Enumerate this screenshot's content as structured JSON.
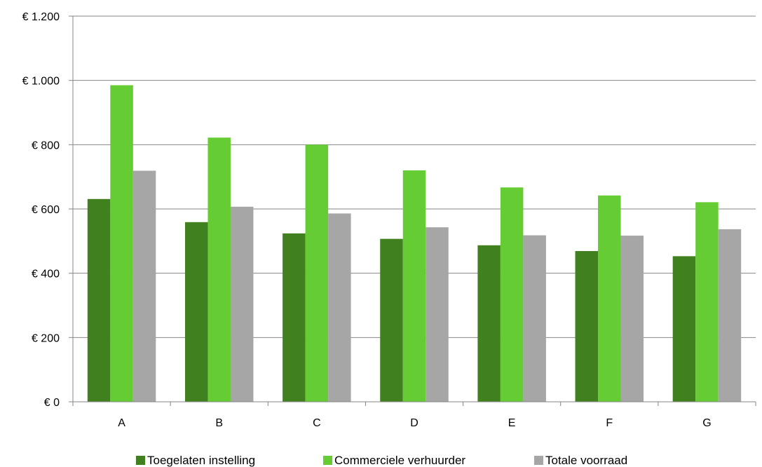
{
  "chart_data": {
    "type": "bar",
    "title": "",
    "xlabel": "",
    "ylabel": "",
    "categories": [
      "A",
      "B",
      "C",
      "D",
      "E",
      "F",
      "G"
    ],
    "series": [
      {
        "name": "Toegelaten instelling",
        "color": "#41801f",
        "values": [
          631,
          559,
          524,
          507,
          487,
          469,
          453
        ]
      },
      {
        "name": "Commerciele verhuurder",
        "color": "#66cc33",
        "values": [
          985,
          822,
          800,
          720,
          667,
          642,
          621
        ]
      },
      {
        "name": "Totale voorraad",
        "color": "#a6a6a6",
        "values": [
          719,
          607,
          586,
          543,
          518,
          517,
          537
        ]
      }
    ],
    "ylim": [
      0,
      1200
    ],
    "yticks": [
      0,
      200,
      400,
      600,
      800,
      1000,
      1200
    ],
    "ytick_labels": [
      "€ 0",
      "€ 200",
      "€ 400",
      "€ 600",
      "€ 800",
      "€ 1.000",
      "€ 1.200"
    ],
    "grid": true,
    "legend_position": "bottom"
  }
}
